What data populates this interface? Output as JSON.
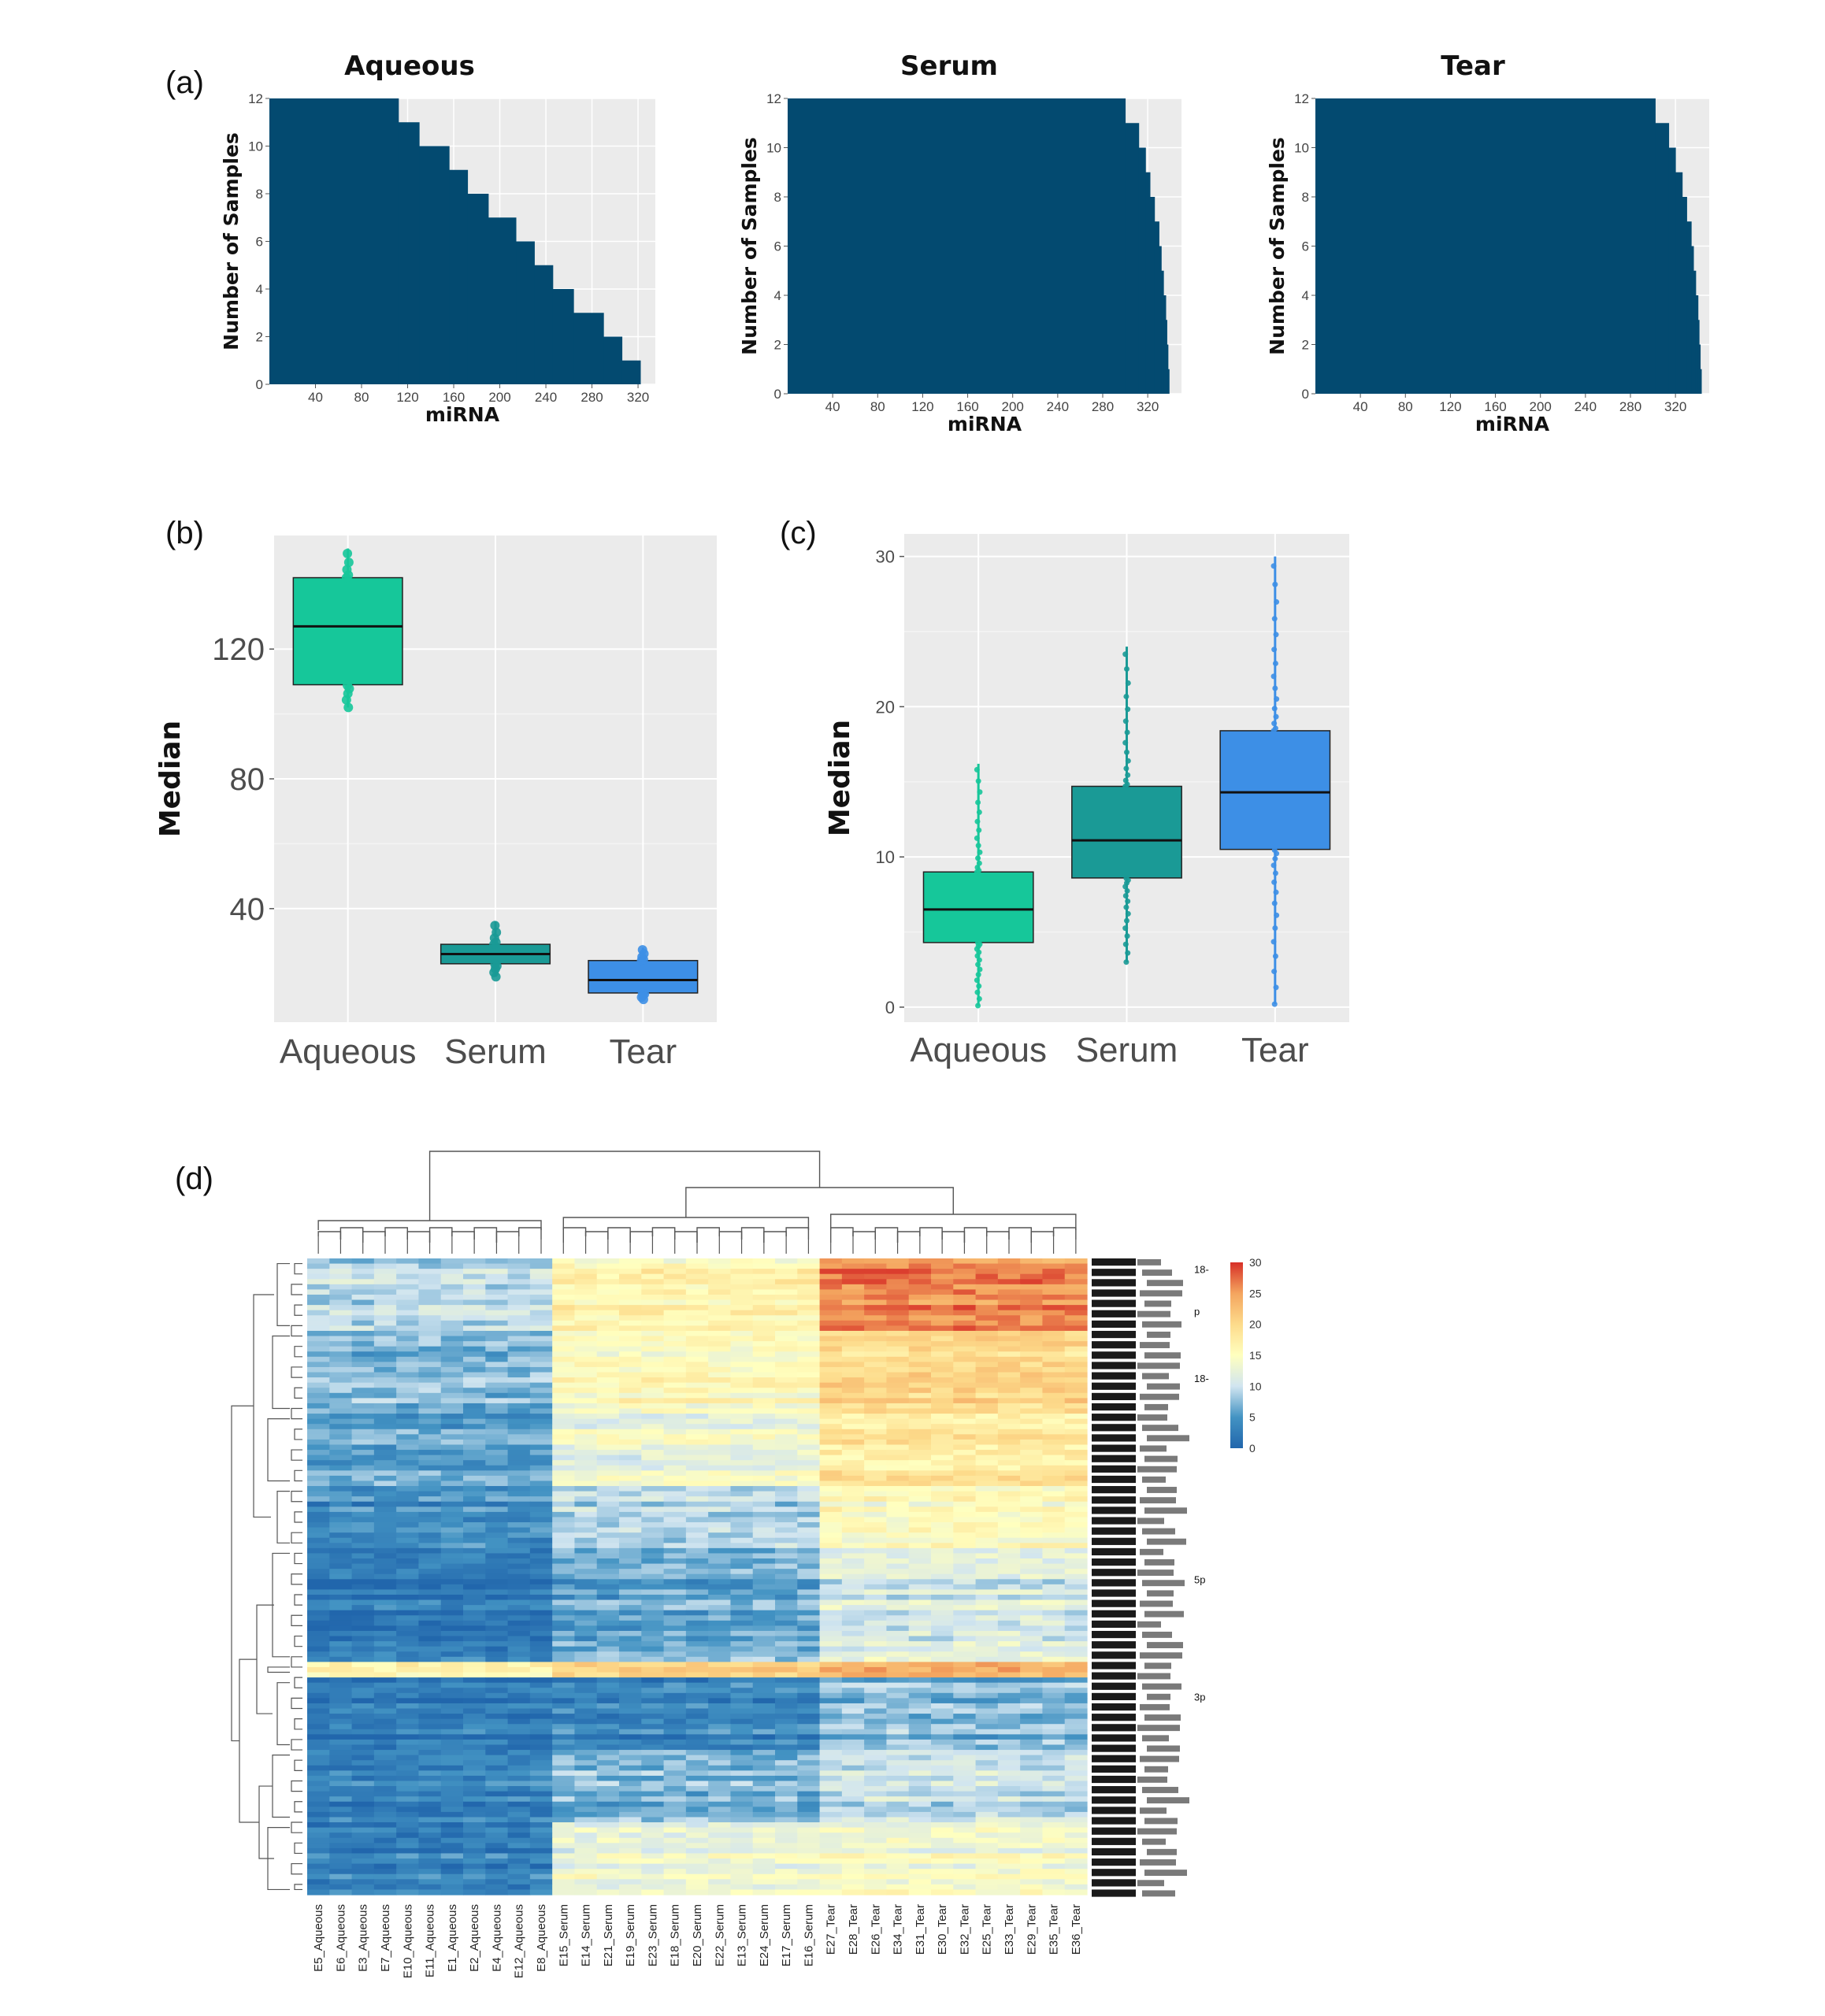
{
  "chart_data": [
    {
      "panel": "(a)",
      "type": "bar",
      "subtype": "cumulative-detection",
      "charts": [
        {
          "title": "Aqueous",
          "xlabel": "miRNA",
          "ylabel": "Number of Samples",
          "xticks": [
            "40",
            "80",
            "120",
            "160",
            "200",
            "240",
            "280",
            "320"
          ],
          "yticks": [
            "0",
            "2",
            "4",
            "6",
            "8",
            "10",
            "12"
          ],
          "xlim": [
            0,
            335
          ],
          "ylim": [
            0,
            12
          ],
          "steps": [
            [
              0,
              12
            ],
            [
              112,
              11
            ],
            [
              130,
              10
            ],
            [
              156,
              9
            ],
            [
              172,
              8
            ],
            [
              190,
              7
            ],
            [
              214,
              6
            ],
            [
              230,
              5
            ],
            [
              246,
              4
            ],
            [
              264,
              3
            ],
            [
              290,
              2
            ],
            [
              306,
              1
            ],
            [
              322,
              0
            ]
          ]
        },
        {
          "title": "Serum",
          "xlabel": "miRNA",
          "ylabel": "Number of Samples",
          "xticks": [
            "40",
            "80",
            "120",
            "160",
            "200",
            "240",
            "280",
            "320"
          ],
          "yticks": [
            "0",
            "2",
            "4",
            "6",
            "8",
            "10",
            "12"
          ],
          "xlim": [
            0,
            350
          ],
          "ylim": [
            0,
            12
          ],
          "steps": [
            [
              0,
              12
            ],
            [
              300,
              11
            ],
            [
              312,
              10
            ],
            [
              318,
              9
            ],
            [
              322,
              8
            ],
            [
              326,
              7
            ],
            [
              330,
              6
            ],
            [
              332,
              5
            ],
            [
              334,
              4
            ],
            [
              336,
              3
            ],
            [
              337,
              2
            ],
            [
              338,
              1
            ],
            [
              339,
              0
            ]
          ]
        },
        {
          "title": "Tear",
          "xlabel": "miRNA",
          "ylabel": "Number of Samples",
          "xticks": [
            "40",
            "80",
            "120",
            "160",
            "200",
            "240",
            "280",
            "320"
          ],
          "yticks": [
            "0",
            "2",
            "4",
            "6",
            "8",
            "10",
            "12"
          ],
          "xlim": [
            0,
            350
          ],
          "ylim": [
            0,
            12
          ],
          "steps": [
            [
              0,
              12
            ],
            [
              302,
              11
            ],
            [
              314,
              10
            ],
            [
              320,
              9
            ],
            [
              326,
              8
            ],
            [
              330,
              7
            ],
            [
              334,
              6
            ],
            [
              336,
              5
            ],
            [
              338,
              4
            ],
            [
              340,
              3
            ],
            [
              341,
              2
            ],
            [
              342,
              1
            ],
            [
              343,
              0
            ]
          ]
        }
      ]
    },
    {
      "panel": "(b)",
      "type": "box",
      "ylabel": "Median",
      "yticks": [
        "40",
        "80",
        "120"
      ],
      "ylim": [
        5,
        155
      ],
      "categories": [
        "Aqueous",
        "Serum",
        "Tear"
      ],
      "boxes": [
        {
          "name": "Aqueous",
          "q1": 109,
          "median": 127,
          "q3": 142,
          "min": 102,
          "max": 151,
          "color": "#16c79a"
        },
        {
          "name": "Serum",
          "q1": 23,
          "median": 26,
          "q3": 29,
          "min": 19,
          "max": 36,
          "color": "#1a9a96"
        },
        {
          "name": "Tear",
          "q1": 14,
          "median": 18,
          "q3": 24,
          "min": 12,
          "max": 28,
          "color": "#3d8fe6"
        }
      ]
    },
    {
      "panel": "(c)",
      "type": "box",
      "ylabel": "Median",
      "yticks": [
        "0",
        "10",
        "20",
        "30"
      ],
      "ylim": [
        -1,
        31.5
      ],
      "categories": [
        "Aqueous",
        "Serum",
        "Tear"
      ],
      "boxes": [
        {
          "name": "Aqueous",
          "q1": 4.3,
          "median": 6.5,
          "q3": 9.0,
          "min": 0.1,
          "max": 16.2,
          "color": "#16c79a"
        },
        {
          "name": "Serum",
          "q1": 8.6,
          "median": 11.1,
          "q3": 14.7,
          "min": 3.0,
          "max": 24.0,
          "color": "#1a9a96"
        },
        {
          "name": "Tear",
          "q1": 10.5,
          "median": 14.3,
          "q3": 18.4,
          "min": 0.2,
          "max": 30.0,
          "color": "#3d8fe6"
        }
      ]
    },
    {
      "panel": "(d)",
      "type": "heatmap",
      "columns": [
        "E5_Aqueous",
        "E6_Aqueous",
        "E3_Aqueous",
        "E7_Aqueous",
        "E10_Aqueous",
        "E11_Aqueous",
        "E1_Aqueous",
        "E2_Aqueous",
        "E4_Aqueous",
        "E12_Aqueous",
        "E8_Aqueous",
        "E15_Serum",
        "E14_Serum",
        "E21_Serum",
        "E19_Serum",
        "E23_Serum",
        "E18_Serum",
        "E20_Serum",
        "E22_Serum",
        "E13_Serum",
        "E24_Serum",
        "E17_Serum",
        "E16_Serum",
        "E27_Tear",
        "E28_Tear",
        "E26_Tear",
        "E34_Tear",
        "E31_Tear",
        "E30_Tear",
        "E32_Tear",
        "E25_Tear",
        "E33_Tear",
        "E29_Tear",
        "E35_Tear",
        "E36_Tear"
      ],
      "groups": [
        {
          "name": "Aqueous",
          "count": 11
        },
        {
          "name": "Serum",
          "count": 12
        },
        {
          "name": "Tear",
          "count": 12
        }
      ],
      "legend": {
        "ticks": [
          "30",
          "25",
          "20",
          "15",
          "10",
          "5",
          "0"
        ],
        "range": [
          0,
          30
        ]
      },
      "row_blocks": [
        {
          "rows": 14,
          "Aqueous": 9,
          "Serum": 16,
          "Tear": 26
        },
        {
          "rows": 16,
          "Aqueous": 7,
          "Serum": 15,
          "Tear": 20
        },
        {
          "rows": 14,
          "Aqueous": 6,
          "Serum": 13,
          "Tear": 18
        },
        {
          "rows": 12,
          "Aqueous": 4,
          "Serum": 9,
          "Tear": 15
        },
        {
          "rows": 22,
          "Aqueous": 2,
          "Serum": 6,
          "Tear": 11
        },
        {
          "rows": 3,
          "Aqueous": 18,
          "Serum": 22,
          "Tear": 25
        },
        {
          "rows": 14,
          "Aqueous": 2,
          "Serum": 3,
          "Tear": 7
        },
        {
          "rows": 14,
          "Aqueous": 3,
          "Serum": 7,
          "Tear": 10
        },
        {
          "rows": 14,
          "Aqueous": 3,
          "Serum": 13,
          "Tear": 14
        }
      ],
      "row_label_fragments": [
        {
          "text": "18-",
          "row": 1
        },
        {
          "text": "p",
          "row": 6
        },
        {
          "text": "18-",
          "row": 14
        },
        {
          "text": "5p",
          "row": 38
        },
        {
          "text": "3p",
          "row": 52
        }
      ]
    }
  ],
  "labels": {
    "a": "(a)",
    "b": "(b)",
    "c": "(c)",
    "d": "(d)"
  },
  "colors": {
    "panel_bg": "#ebebeb",
    "grid": "#ffffff",
    "bar": "#034a70"
  }
}
